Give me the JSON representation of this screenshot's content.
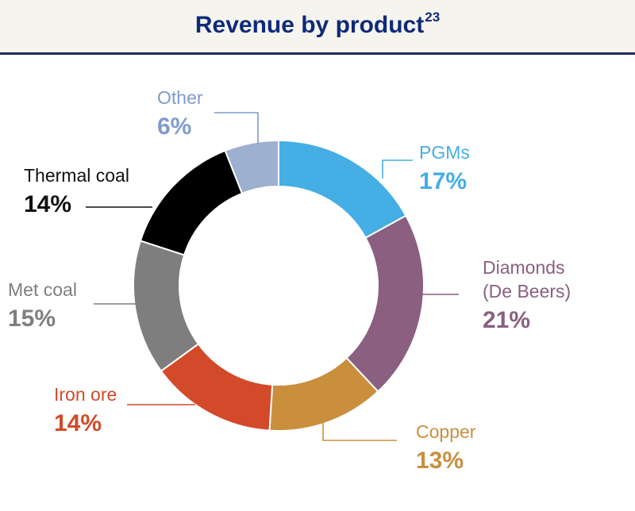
{
  "header": {
    "title": "Revenue by product",
    "footnote": "23"
  },
  "chart_data": {
    "type": "pie",
    "subtype": "donut",
    "title": "Revenue by product",
    "unit": "%",
    "slices": [
      {
        "label": [
          "PGMs"
        ],
        "value": 17,
        "value_label": "17%",
        "color": "#45aee4"
      },
      {
        "label": [
          "Diamonds",
          "(De Beers)"
        ],
        "value": 21,
        "value_label": "21%",
        "color": "#8a5f80"
      },
      {
        "label": [
          "Copper"
        ],
        "value": 13,
        "value_label": "13%",
        "color": "#c98f3d"
      },
      {
        "label": [
          "Iron ore"
        ],
        "value": 14,
        "value_label": "14%",
        "color": "#d24a2a"
      },
      {
        "label": [
          "Met coal"
        ],
        "value": 15,
        "value_label": "15%",
        "color": "#7e7e7e"
      },
      {
        "label": [
          "Thermal coal"
        ],
        "value": 14,
        "value_label": "14%",
        "color": "#000000"
      },
      {
        "label": [
          "Other"
        ],
        "value": 6,
        "value_label": "6%",
        "color": "#9eb0d0"
      }
    ],
    "label_colors": [
      "#45aee4",
      "#8a5f80",
      "#c98f3d",
      "#d24a2a",
      "#7e7e7e",
      "#111111",
      "#7f9bcc"
    ]
  }
}
